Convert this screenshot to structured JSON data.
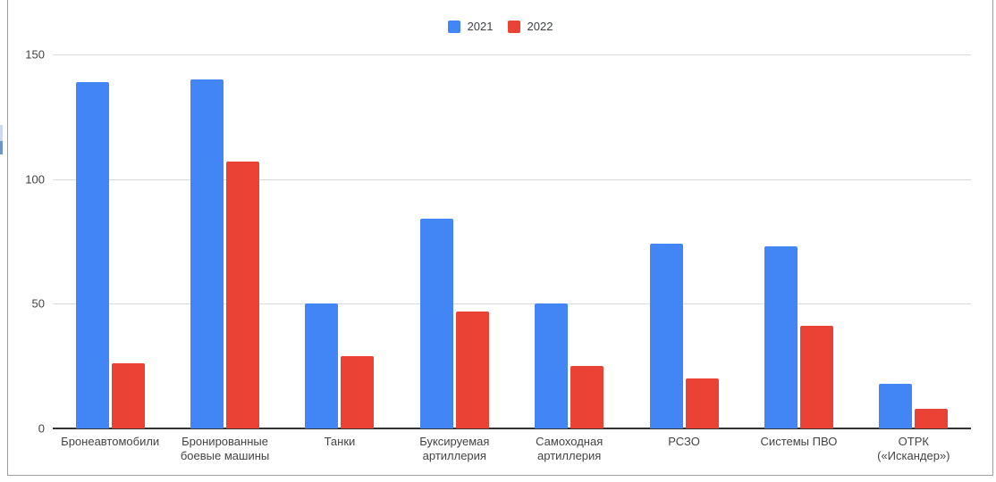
{
  "legend": {
    "items": [
      {
        "label": "2021",
        "color": "#4285f4"
      },
      {
        "label": "2022",
        "color": "#ea4335"
      }
    ]
  },
  "chart_data": {
    "type": "bar",
    "title": "",
    "xlabel": "",
    "ylabel": "",
    "categories": [
      "Бронеавтомобили",
      "Бронированные боевые машины",
      "Танки",
      "Буксируемая артиллерия",
      "Самоходная артиллерия",
      "РСЗО",
      "Системы ПВО",
      "ОТРК («Искандер»)"
    ],
    "series": [
      {
        "name": "2021",
        "color": "#4285f4",
        "values": [
          139,
          140,
          50,
          84,
          50,
          74,
          73,
          18
        ]
      },
      {
        "name": "2022",
        "color": "#ea4335",
        "values": [
          26,
          107,
          29,
          47,
          25,
          20,
          41,
          8
        ]
      }
    ],
    "ylim": [
      0,
      150
    ],
    "y_ticks": [
      0,
      50,
      100,
      150
    ],
    "grid": true,
    "legend_position": "top-center"
  },
  "colors": {
    "series_2021": "#4285f4",
    "series_2022": "#ea4335",
    "gridline": "#dadada",
    "axis_line": "#333333",
    "tick_text": "#424242",
    "frame_border": "#9e9e9e"
  }
}
